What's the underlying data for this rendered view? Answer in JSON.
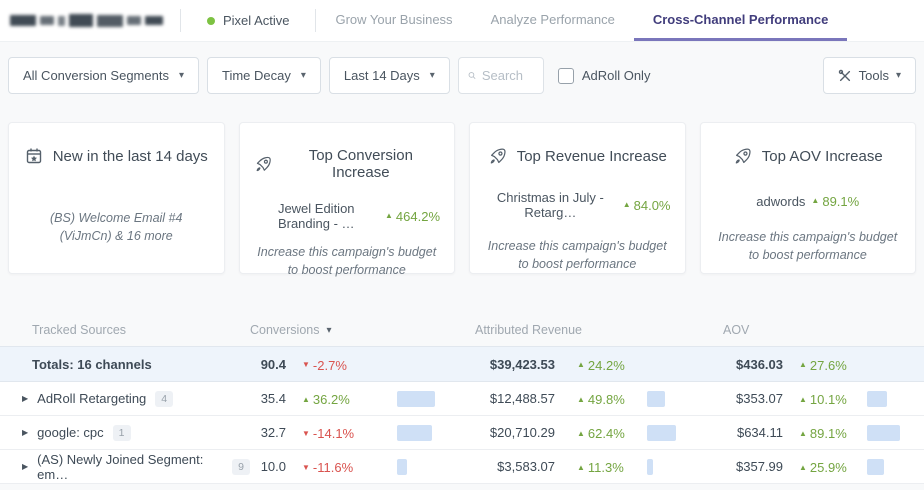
{
  "colors": {
    "up": "#74a541",
    "down": "#d9534f",
    "bar": "#cfe0f6",
    "accent": "#413d7c",
    "accent_underline": "#7a76bb",
    "pixel_dot": "#7dc242",
    "totals_bg": "#eef4fb"
  },
  "icons": {
    "dropdown_caret": "▾",
    "sort_caret": "▾",
    "expand_caret": "▶",
    "up_arrow": "▲",
    "down_arrow": "▼"
  },
  "topbar": {
    "pixel_status": "Pixel Active",
    "tabs": [
      {
        "label": "Grow Your Business"
      },
      {
        "label": "Analyze Performance"
      },
      {
        "label": "Cross-Channel Performance"
      }
    ]
  },
  "filters": {
    "segments_dropdown": "All Conversion Segments",
    "attribution_dropdown": "Time Decay",
    "date_range_dropdown": "Last 14 Days",
    "search_placeholder": "Search",
    "adroll_only_label": "AdRoll Only",
    "tools_label": "Tools"
  },
  "cards": [
    {
      "title": "New in the last 14 days",
      "note": "(BS) Welcome Email #4 (ViJmCn) & 16 more"
    },
    {
      "title": "Top Conversion Increase",
      "item": "Jewel Edition Branding - …",
      "change": "464.2%",
      "direction": "up",
      "note": "Increase this campaign's budget to boost performance"
    },
    {
      "title": "Top Revenue Increase",
      "item": "Christmas in July - Retarg…",
      "change": "84.0%",
      "direction": "up",
      "note": "Increase this campaign's budget to boost performance"
    },
    {
      "title": "Top AOV Increase",
      "item": "adwords",
      "change": "89.1%",
      "direction": "up",
      "note": "Increase this campaign's budget to boost performance"
    }
  ],
  "table": {
    "headers": {
      "sources": "Tracked Sources",
      "conversions": "Conversions",
      "revenue": "Attributed Revenue",
      "aov": "AOV"
    },
    "totals": {
      "label": "Totals: 16 channels",
      "conversions": "90.4",
      "conv_change": "-2.7%",
      "conv_dir": "down",
      "revenue": "$39,423.53",
      "rev_change": "24.2%",
      "rev_dir": "up",
      "aov": "$436.03",
      "aov_change": "27.6%",
      "aov_dir": "up"
    },
    "rows": [
      {
        "label": "AdRoll Retargeting",
        "badge": "4",
        "conversions": "35.4",
        "conv_change": "36.2%",
        "conv_dir": "up",
        "conv_bar": 38,
        "revenue": "$12,488.57",
        "rev_change": "49.8%",
        "rev_dir": "up",
        "rev_bar": 18,
        "aov": "$353.07",
        "aov_change": "10.1%",
        "aov_dir": "up",
        "aov_bar": 20
      },
      {
        "label": "google: cpc",
        "badge": "1",
        "conversions": "32.7",
        "conv_change": "-14.1%",
        "conv_dir": "down",
        "conv_bar": 35,
        "revenue": "$20,710.29",
        "rev_change": "62.4%",
        "rev_dir": "up",
        "rev_bar": 29,
        "aov": "$634.11",
        "aov_change": "89.1%",
        "aov_dir": "up",
        "aov_bar": 33
      },
      {
        "label": "(AS) Newly Joined Segment: em…",
        "badge": "9",
        "conversions": "10.0",
        "conv_change": "-11.6%",
        "conv_dir": "down",
        "conv_bar": 10,
        "revenue": "$3,583.07",
        "rev_change": "11.3%",
        "rev_dir": "up",
        "rev_bar": 6,
        "aov": "$357.99",
        "aov_change": "25.9%",
        "aov_dir": "up",
        "aov_bar": 17
      }
    ]
  }
}
